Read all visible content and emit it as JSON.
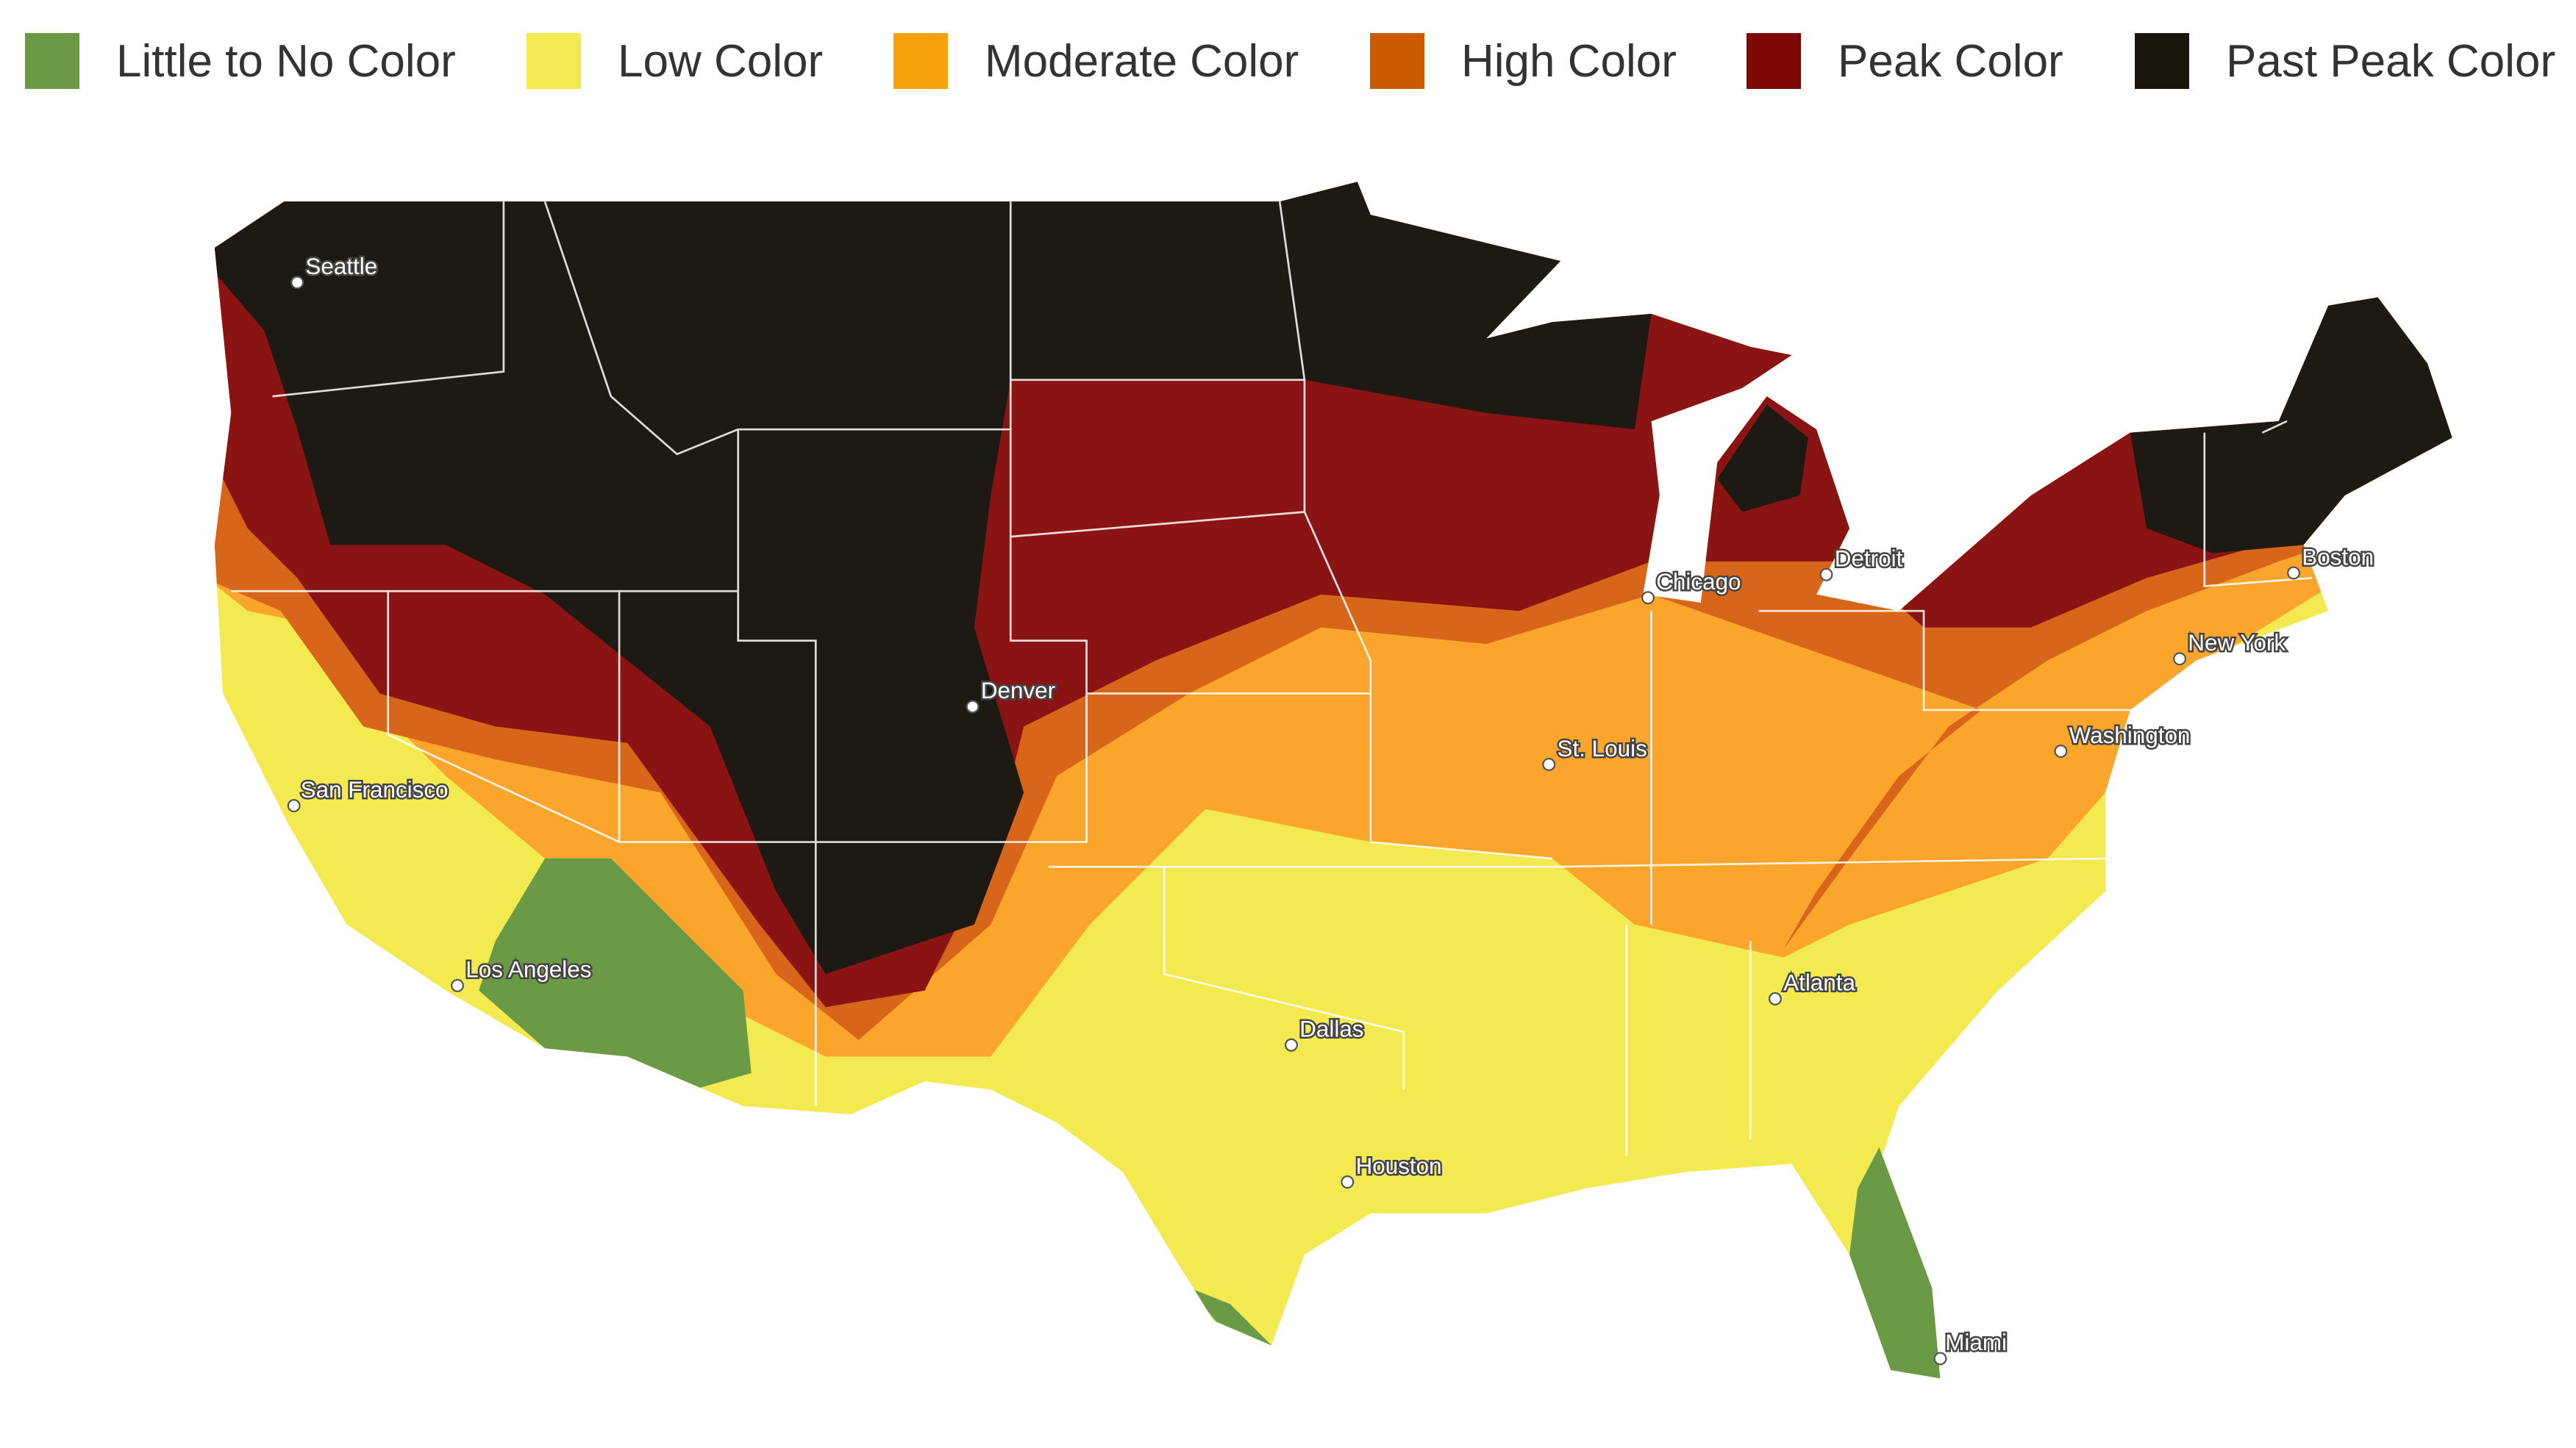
{
  "legend": [
    {
      "label": "Little to No Color",
      "color": "#6a9a45"
    },
    {
      "label": "Low Color",
      "color": "#f3ea52"
    },
    {
      "label": "Moderate Color",
      "color": "#f8a10b"
    },
    {
      "label": "High Color",
      "color": "#cc5a00"
    },
    {
      "label": "Peak Color",
      "color": "#7e0806"
    },
    {
      "label": "Past Peak Color",
      "color": "#1b160b"
    }
  ],
  "cities": [
    {
      "name": "Seattle"
    },
    {
      "name": "San Francisco"
    },
    {
      "name": "Los Angeles"
    },
    {
      "name": "Denver"
    },
    {
      "name": "Dallas"
    },
    {
      "name": "Houston"
    },
    {
      "name": "St. Louis"
    },
    {
      "name": "Chicago"
    },
    {
      "name": "Detroit"
    },
    {
      "name": "Atlanta"
    },
    {
      "name": "Washington"
    },
    {
      "name": "New York"
    },
    {
      "name": "Boston"
    },
    {
      "name": "Miami"
    }
  ]
}
